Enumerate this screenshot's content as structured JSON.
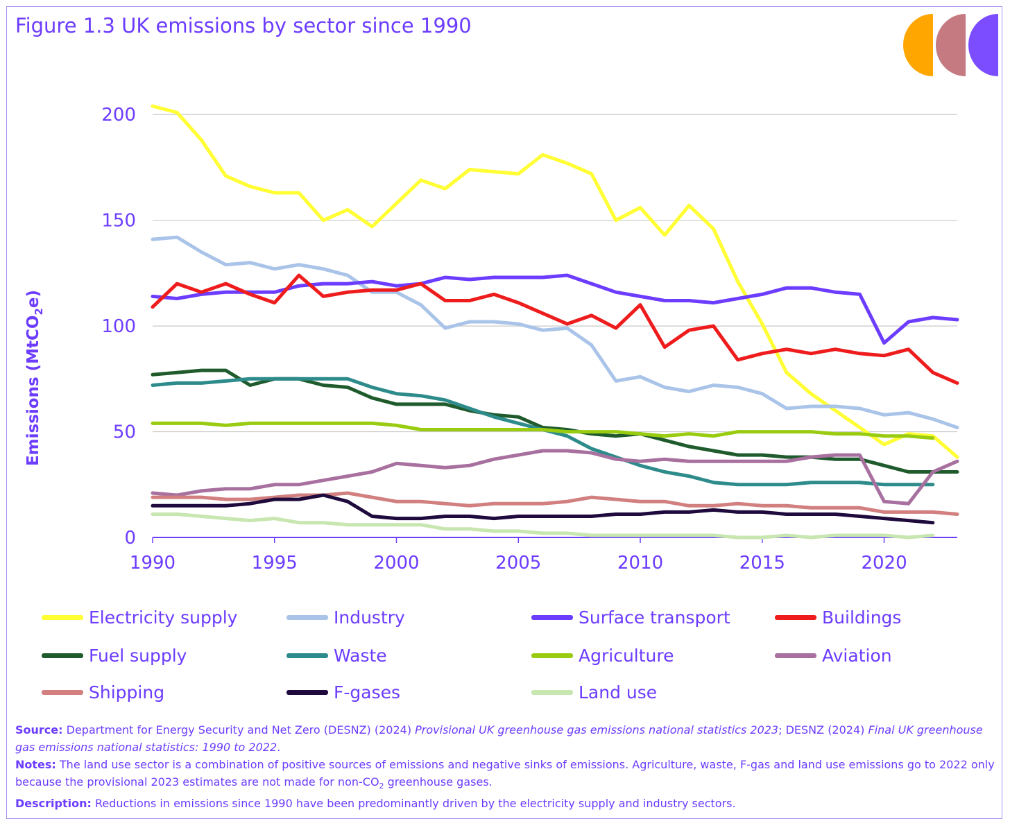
{
  "title": "Figure 1.3 UK emissions by sector since 1990",
  "ylabel": "Emissions (MtCO",
  "ylabel_sub": "2",
  "ylabel_end": "e)",
  "colors": {
    "accent": "#6c3cff",
    "grid": "#c9c9c9",
    "logo": [
      "#ffa600",
      "#c47a80",
      "#7b4dff"
    ]
  },
  "chart_data": {
    "type": "line",
    "x": [
      1990,
      1991,
      1992,
      1993,
      1994,
      1995,
      1996,
      1997,
      1998,
      1999,
      2000,
      2001,
      2002,
      2003,
      2004,
      2005,
      2006,
      2007,
      2008,
      2009,
      2010,
      2011,
      2012,
      2013,
      2014,
      2015,
      2016,
      2017,
      2018,
      2019,
      2020,
      2021,
      2022,
      2023
    ],
    "xticks": [
      1990,
      1995,
      2000,
      2005,
      2010,
      2015,
      2020
    ],
    "yticks": [
      0,
      50,
      100,
      150,
      200
    ],
    "ylim": [
      0,
      205
    ],
    "xlim": [
      1990,
      2023
    ],
    "grid": "horizontal",
    "legend": "bottom",
    "series": [
      {
        "name": "Electricity supply",
        "color": "#ffff33",
        "values": [
          204,
          201,
          188,
          171,
          166,
          163,
          163,
          150,
          155,
          147,
          158,
          169,
          165,
          174,
          173,
          172,
          181,
          177,
          172,
          150,
          156,
          143,
          157,
          146,
          121,
          101,
          78,
          68,
          60,
          52,
          44,
          49,
          48,
          38
        ]
      },
      {
        "name": "Industry",
        "color": "#a9c4e8",
        "values": [
          141,
          142,
          135,
          129,
          130,
          127,
          129,
          127,
          124,
          116,
          116,
          110,
          99,
          102,
          102,
          101,
          98,
          99,
          91,
          74,
          76,
          71,
          69,
          72,
          71,
          68,
          61,
          62,
          62,
          61,
          58,
          59,
          56,
          52
        ]
      },
      {
        "name": "Surface transport",
        "color": "#6c3cff",
        "values": [
          114,
          113,
          115,
          116,
          116,
          116,
          119,
          120,
          120,
          121,
          119,
          120,
          123,
          122,
          123,
          123,
          123,
          124,
          120,
          116,
          114,
          112,
          112,
          111,
          113,
          115,
          118,
          118,
          116,
          115,
          92,
          102,
          104,
          103
        ]
      },
      {
        "name": "Buildings",
        "color": "#ee1c1c",
        "values": [
          109,
          120,
          116,
          120,
          115,
          111,
          124,
          114,
          116,
          117,
          117,
          120,
          112,
          112,
          115,
          111,
          106,
          101,
          105,
          99,
          110,
          90,
          98,
          100,
          84,
          87,
          89,
          87,
          89,
          87,
          86,
          89,
          78,
          73
        ]
      },
      {
        "name": "Fuel supply",
        "color": "#1f5b2c",
        "values": [
          77,
          78,
          79,
          79,
          72,
          75,
          75,
          72,
          71,
          66,
          63,
          63,
          63,
          60,
          58,
          57,
          52,
          51,
          49,
          48,
          49,
          46,
          43,
          41,
          39,
          39,
          38,
          38,
          37,
          37,
          34,
          31,
          31,
          31
        ]
      },
      {
        "name": "Waste",
        "color": "#2e8b8b",
        "values": [
          72,
          73,
          73,
          74,
          75,
          75,
          75,
          75,
          75,
          71,
          68,
          67,
          65,
          61,
          57,
          54,
          51,
          48,
          42,
          38,
          34,
          31,
          29,
          26,
          25,
          25,
          25,
          26,
          26,
          26,
          25,
          25,
          25,
          null
        ]
      },
      {
        "name": "Agriculture",
        "color": "#99cc11",
        "values": [
          54,
          54,
          54,
          53,
          54,
          54,
          54,
          54,
          54,
          54,
          53,
          51,
          51,
          51,
          51,
          51,
          51,
          50,
          50,
          50,
          49,
          48,
          49,
          48,
          50,
          50,
          50,
          50,
          49,
          49,
          48,
          48,
          47,
          null
        ]
      },
      {
        "name": "Aviation",
        "color": "#a8709f",
        "values": [
          21,
          20,
          22,
          23,
          23,
          25,
          25,
          27,
          29,
          31,
          35,
          34,
          33,
          34,
          37,
          39,
          41,
          41,
          40,
          37,
          36,
          37,
          36,
          36,
          36,
          36,
          36,
          38,
          39,
          39,
          17,
          16,
          31,
          36
        ]
      },
      {
        "name": "Shipping",
        "color": "#d17f7f",
        "values": [
          19,
          19,
          19,
          18,
          18,
          19,
          20,
          20,
          21,
          19,
          17,
          17,
          16,
          15,
          16,
          16,
          16,
          17,
          19,
          18,
          17,
          17,
          15,
          15,
          16,
          15,
          15,
          14,
          14,
          14,
          12,
          12,
          12,
          11
        ]
      },
      {
        "name": "F-gases",
        "color": "#1e0a3c",
        "values": [
          15,
          15,
          15,
          15,
          16,
          18,
          18,
          20,
          17,
          10,
          9,
          9,
          10,
          10,
          9,
          10,
          10,
          10,
          10,
          11,
          11,
          12,
          12,
          13,
          12,
          12,
          11,
          11,
          11,
          10,
          9,
          8,
          7,
          null
        ]
      },
      {
        "name": "Land use",
        "color": "#c8e6b0",
        "values": [
          11,
          11,
          10,
          9,
          8,
          9,
          7,
          7,
          6,
          6,
          6,
          6,
          4,
          4,
          3,
          3,
          2,
          2,
          1,
          1,
          1,
          1,
          1,
          1,
          0,
          0,
          1,
          0,
          1,
          1,
          1,
          0,
          1,
          null
        ]
      }
    ]
  },
  "notes": {
    "source_label": "Source:",
    "source_text1": "Department for Energy Security and Net Zero (DESNZ) (2024) ",
    "source_italic1": "Provisional UK greenhouse gas emissions national statistics 2023",
    "source_text2": "; DESNZ (2024) ",
    "source_italic2": "Final UK greenhouse gas emissions national statistics: 1990 to 2022",
    "source_text3": ".",
    "notes_label": "Notes:",
    "notes_text1": "The land use sector is a combination of positive sources of emissions and negative sinks of emissions. Agriculture, waste, F-gas and land use emissions go to 2022 only because the provisional 2023 estimates are not made for non-CO",
    "notes_sub": "2",
    "notes_text2": " greenhouse gases.",
    "description_label": "Description:",
    "description_text": "Reductions in emissions since 1990 have been predominantly driven by the electricity supply and industry sectors."
  }
}
